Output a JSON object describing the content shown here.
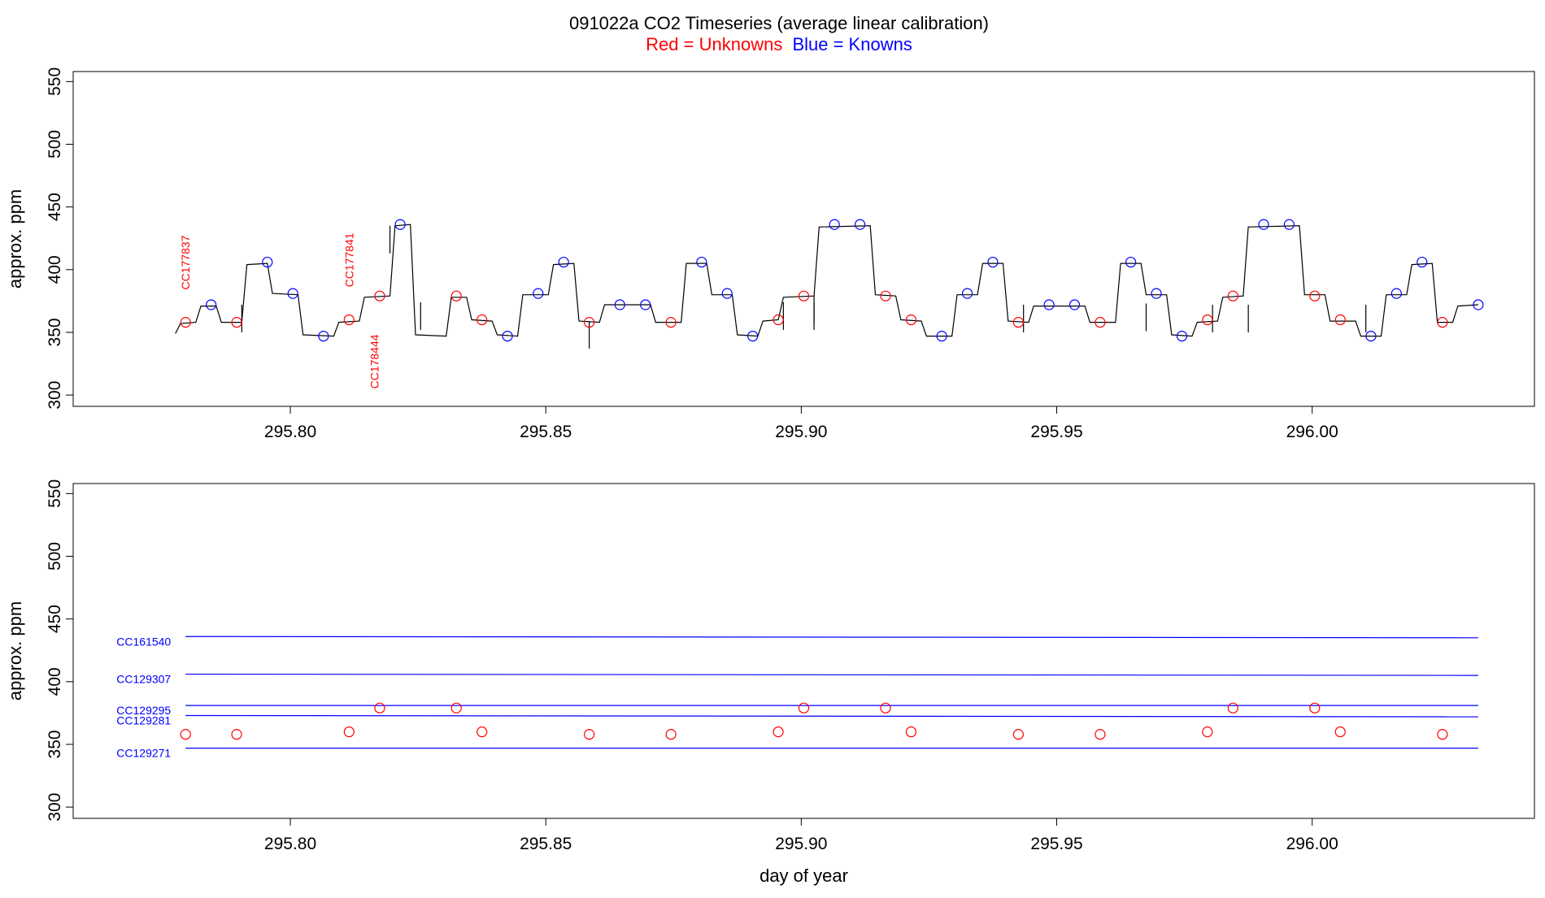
{
  "title": {
    "main": "091022a   CO2 Timeseries (average linear calibration)",
    "legend_red": "Red = Unknowns",
    "legend_blue": "Blue = Knowns",
    "red_color": "#ff0000",
    "blue_color": "#0000ff"
  },
  "chart_data": [
    {
      "type": "line",
      "panel": "top",
      "xlabel": "",
      "ylabel": "approx. ppm",
      "xlim": [
        295.7575,
        296.0435
      ],
      "ylim": [
        291,
        558
      ],
      "xticks": [
        "295.80",
        "295.85",
        "295.90",
        "295.95",
        "296.00"
      ],
      "yticks": [
        "300",
        "350",
        "400",
        "450",
        "500",
        "550"
      ],
      "grid": false,
      "trace_color": "#000000",
      "trace": [
        [
          295.7775,
          349
        ],
        [
          295.7785,
          357
        ],
        [
          295.7815,
          358
        ],
        [
          295.7825,
          371
        ],
        [
          295.7855,
          371
        ],
        [
          295.7865,
          358
        ],
        [
          295.7905,
          358
        ],
        [
          295.7915,
          404
        ],
        [
          295.7955,
          405
        ],
        [
          295.7965,
          381
        ],
        [
          295.8015,
          380
        ],
        [
          295.8025,
          348
        ],
        [
          295.8085,
          347
        ],
        [
          295.8095,
          358
        ],
        [
          295.8135,
          359
        ],
        [
          295.8145,
          378
        ],
        [
          295.8195,
          379
        ],
        [
          295.8205,
          435
        ],
        [
          295.8235,
          436
        ],
        [
          295.8245,
          348
        ],
        [
          295.8305,
          347
        ],
        [
          295.8315,
          378
        ],
        [
          295.8345,
          378
        ],
        [
          295.8355,
          360
        ],
        [
          295.8395,
          359
        ],
        [
          295.8405,
          348
        ],
        [
          295.8445,
          347
        ],
        [
          295.8455,
          380
        ],
        [
          295.8505,
          380
        ],
        [
          295.8515,
          404
        ],
        [
          295.8555,
          405
        ],
        [
          295.8565,
          359
        ],
        [
          295.8605,
          358
        ],
        [
          295.8615,
          372
        ],
        [
          295.8705,
          372
        ],
        [
          295.8715,
          358
        ],
        [
          295.8765,
          358
        ],
        [
          295.8775,
          405
        ],
        [
          295.8815,
          405
        ],
        [
          295.8825,
          380
        ],
        [
          295.8865,
          380
        ],
        [
          295.8875,
          348
        ],
        [
          295.8915,
          347
        ],
        [
          295.8925,
          359
        ],
        [
          295.8955,
          360
        ],
        [
          295.8965,
          378
        ],
        [
          295.9025,
          379
        ],
        [
          295.9035,
          434
        ],
        [
          295.9135,
          435
        ],
        [
          295.9145,
          380
        ],
        [
          295.9185,
          379
        ],
        [
          295.9195,
          360
        ],
        [
          295.9235,
          359
        ],
        [
          295.9245,
          347
        ],
        [
          295.9295,
          347
        ],
        [
          295.9305,
          380
        ],
        [
          295.9345,
          380
        ],
        [
          295.9355,
          405
        ],
        [
          295.9395,
          405
        ],
        [
          295.9405,
          359
        ],
        [
          295.9445,
          358
        ],
        [
          295.9455,
          371
        ],
        [
          295.9555,
          371
        ],
        [
          295.9565,
          358
        ],
        [
          295.9615,
          358
        ],
        [
          295.9625,
          405
        ],
        [
          295.9665,
          405
        ],
        [
          295.9675,
          380
        ],
        [
          295.9715,
          380
        ],
        [
          295.9725,
          348
        ],
        [
          295.9765,
          347
        ],
        [
          295.9775,
          358
        ],
        [
          295.9815,
          359
        ],
        [
          295.9825,
          378
        ],
        [
          295.9865,
          379
        ],
        [
          295.9875,
          434
        ],
        [
          295.9975,
          435
        ],
        [
          295.9985,
          380
        ],
        [
          296.0025,
          380
        ],
        [
          296.0035,
          359
        ],
        [
          296.0085,
          359
        ],
        [
          296.0095,
          347
        ],
        [
          296.0135,
          347
        ],
        [
          296.0145,
          380
        ],
        [
          296.0185,
          380
        ],
        [
          296.0195,
          404
        ],
        [
          296.0235,
          405
        ],
        [
          296.0245,
          358
        ],
        [
          296.0275,
          358
        ],
        [
          296.0285,
          371
        ],
        [
          296.0325,
          372
        ]
      ],
      "spikes": [
        [
          295.7905,
          372
        ],
        [
          295.8195,
          435
        ],
        [
          295.8255,
          374
        ],
        [
          295.8585,
          359
        ],
        [
          295.8965,
          374
        ],
        [
          295.9025,
          379
        ],
        [
          295.9025,
          374
        ],
        [
          295.9435,
          372
        ],
        [
          295.9675,
          373
        ],
        [
          295.9805,
          372
        ],
        [
          295.9875,
          372
        ],
        [
          296.0105,
          372
        ]
      ],
      "unknowns": [
        [
          295.7795,
          358
        ],
        [
          295.7895,
          358
        ],
        [
          295.8115,
          360
        ],
        [
          295.8175,
          379
        ],
        [
          295.8325,
          379
        ],
        [
          295.8375,
          360
        ],
        [
          295.8585,
          358
        ],
        [
          295.8745,
          358
        ],
        [
          295.8955,
          360
        ],
        [
          295.9005,
          379
        ],
        [
          295.9165,
          379
        ],
        [
          295.9215,
          360
        ],
        [
          295.9425,
          358
        ],
        [
          295.9585,
          358
        ],
        [
          295.9795,
          360
        ],
        [
          295.9845,
          379
        ],
        [
          296.0005,
          379
        ],
        [
          296.0055,
          360
        ],
        [
          296.0255,
          358
        ]
      ],
      "knowns": [
        [
          295.7845,
          372
        ],
        [
          295.7955,
          406
        ],
        [
          295.8005,
          381
        ],
        [
          295.8065,
          347
        ],
        [
          295.8215,
          436
        ],
        [
          295.8425,
          347
        ],
        [
          295.8485,
          381
        ],
        [
          295.8535,
          406
        ],
        [
          295.8645,
          372
        ],
        [
          295.8695,
          372
        ],
        [
          295.8805,
          406
        ],
        [
          295.8855,
          381
        ],
        [
          295.8905,
          347
        ],
        [
          295.9065,
          436
        ],
        [
          295.9115,
          436
        ],
        [
          295.9275,
          347
        ],
        [
          295.9325,
          381
        ],
        [
          295.9375,
          406
        ],
        [
          295.9485,
          372
        ],
        [
          295.9535,
          372
        ],
        [
          295.9645,
          406
        ],
        [
          295.9695,
          381
        ],
        [
          295.9745,
          347
        ],
        [
          295.9905,
          436
        ],
        [
          295.9955,
          436
        ],
        [
          296.0115,
          347
        ],
        [
          296.0165,
          381
        ],
        [
          296.0215,
          406
        ],
        [
          296.0325,
          372
        ]
      ],
      "annotations": [
        {
          "text": "CC177837",
          "x": 295.7795,
          "y": 384
        },
        {
          "text": "CC177841",
          "x": 295.8115,
          "y": 386
        },
        {
          "text": "CC178444",
          "x": 295.8165,
          "y": 305
        }
      ]
    },
    {
      "type": "line",
      "panel": "bottom",
      "xlabel": "day of year",
      "ylabel": "approx. ppm",
      "xlim": [
        295.7575,
        296.0435
      ],
      "ylim": [
        291,
        558
      ],
      "xticks": [
        "295.80",
        "295.85",
        "295.90",
        "295.95",
        "296.00"
      ],
      "yticks": [
        "300",
        "350",
        "400",
        "450",
        "500",
        "550"
      ],
      "grid": false,
      "series": [
        {
          "name": "CC161540",
          "x": [
            295.7795,
            296.0325
          ],
          "y": [
            436,
            435
          ]
        },
        {
          "name": "CC129307",
          "x": [
            295.7795,
            296.0325
          ],
          "y": [
            406,
            405
          ]
        },
        {
          "name": "CC129295",
          "x": [
            295.7795,
            296.0325
          ],
          "y": [
            381,
            381
          ]
        },
        {
          "name": "CC129281",
          "x": [
            295.7795,
            296.0325
          ],
          "y": [
            373,
            372
          ]
        },
        {
          "name": "CC129271",
          "x": [
            295.7795,
            296.0325
          ],
          "y": [
            347,
            347
          ]
        }
      ],
      "unknowns": [
        [
          295.7795,
          358
        ],
        [
          295.7895,
          358
        ],
        [
          295.8115,
          360
        ],
        [
          295.8175,
          379
        ],
        [
          295.8325,
          379
        ],
        [
          295.8375,
          360
        ],
        [
          295.8585,
          358
        ],
        [
          295.8745,
          358
        ],
        [
          295.8955,
          360
        ],
        [
          295.9005,
          379
        ],
        [
          295.9165,
          379
        ],
        [
          295.9215,
          360
        ],
        [
          295.9425,
          358
        ],
        [
          295.9585,
          358
        ],
        [
          295.9795,
          360
        ],
        [
          295.9845,
          379
        ],
        [
          296.0005,
          379
        ],
        [
          296.0055,
          360
        ],
        [
          296.0255,
          358
        ]
      ]
    }
  ]
}
